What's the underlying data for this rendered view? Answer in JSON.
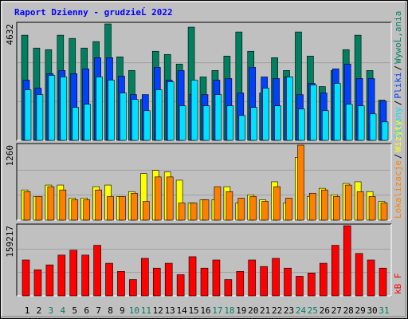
{
  "chart_data": [
    {
      "type": "bar",
      "title": "Raport Dzienny -  grudzieĹ  2022",
      "legend_separator": "/",
      "ylim": [
        0,
        4632
      ],
      "yticks": [
        4632
      ],
      "series": [
        {
          "name": "WywoĹ‚ania",
          "color": "#008060",
          "values": [
            4184,
            3673,
            3609,
            4184,
            4056,
            3673,
            3929,
            4632,
            3322,
            2779,
            1629,
            3545,
            3418,
            3034,
            4504,
            2523,
            2779,
            3354,
            4312,
            3545,
            1884,
            3290,
            2779,
            4312,
            3354,
            2140,
            2779,
            3609,
            4184,
            2779,
            1597
          ]
        },
        {
          "name": "Pliki",
          "color": "#0040ff",
          "values": [
            2396,
            2076,
            2652,
            2779,
            2652,
            2843,
            3290,
            3290,
            2556,
            1821,
            1821,
            2907,
            2396,
            2779,
            1821,
            1821,
            2396,
            2460,
            1884,
            2907,
            2523,
            2460,
            2523,
            1821,
            2268,
            1884,
            2843,
            3034,
            2460,
            2460,
            1565
          ]
        },
        {
          "name": "Strony",
          "color": "#00e0ff",
          "values": [
            2012,
            1821,
            2587,
            2523,
            1310,
            1437,
            2523,
            2396,
            1884,
            1629,
            1182,
            2012,
            2332,
            1373,
            2396,
            1373,
            1821,
            1373,
            990,
            1310,
            2076,
            1373,
            2523,
            1246,
            2204,
            1182,
            2268,
            1437,
            1373,
            1054,
            735
          ]
        }
      ]
    },
    {
      "type": "bar",
      "ylim": [
        0,
        1260
      ],
      "yticks": [
        1260
      ],
      "series": [
        {
          "name": "Wizyty",
          "color": "#ffff00",
          "values": [
            507,
            397,
            589,
            589,
            370,
            370,
            562,
            589,
            397,
            479,
            781,
            836,
            808,
            671,
            288,
            342,
            342,
            562,
            288,
            425,
            342,
            644,
            288,
            1055,
            397,
            534,
            425,
            616,
            644,
            479,
            315
          ]
        },
        {
          "name": "Lokalizacje",
          "color": "#ff8000",
          "values": [
            479,
            397,
            562,
            507,
            342,
            342,
            507,
            397,
            397,
            452,
            315,
            726,
            726,
            288,
            288,
            342,
            562,
            479,
            370,
            397,
            315,
            562,
            370,
            1260,
            452,
            507,
            397,
            589,
            479,
            397,
            288
          ]
        }
      ]
    },
    {
      "type": "bar",
      "ylim": [
        0,
        159217
      ],
      "yticks": [
        159217
      ],
      "categories": [
        "1",
        "2",
        "3",
        "4",
        "5",
        "6",
        "7",
        "8",
        "9",
        "10",
        "11",
        "12",
        "13",
        "14",
        "15",
        "16",
        "17",
        "18",
        "19",
        "20",
        "21",
        "22",
        "23",
        "24",
        "25",
        "26",
        "27",
        "28",
        "29",
        "30",
        "31"
      ],
      "category_colors": [
        "#000",
        "#000",
        "#008060",
        "#008060",
        "#000",
        "#000",
        "#000",
        "#000",
        "#000",
        "#008060",
        "#008060",
        "#000",
        "#000",
        "#000",
        "#000",
        "#000",
        "#008060",
        "#008060",
        "#000",
        "#000",
        "#000",
        "#000",
        "#000",
        "#008060",
        "#008060",
        "#000",
        "#000",
        "#000",
        "#000",
        "#000",
        "#008060"
      ],
      "series": [
        {
          "name": "kB F",
          "color": "#ff0000",
          "values": [
            81444,
            59232,
            70338,
            92550,
            103656,
            92550,
            114762,
            74040,
            55530,
            37020,
            85146,
            62934,
            74040,
            48126,
            88848,
            62934,
            81444,
            37020,
            55530,
            81444,
            66636,
            85146,
            62934,
            44424,
            51828,
            74040,
            114762,
            159217,
            96252,
            81444,
            62934
          ]
        }
      ]
    }
  ]
}
